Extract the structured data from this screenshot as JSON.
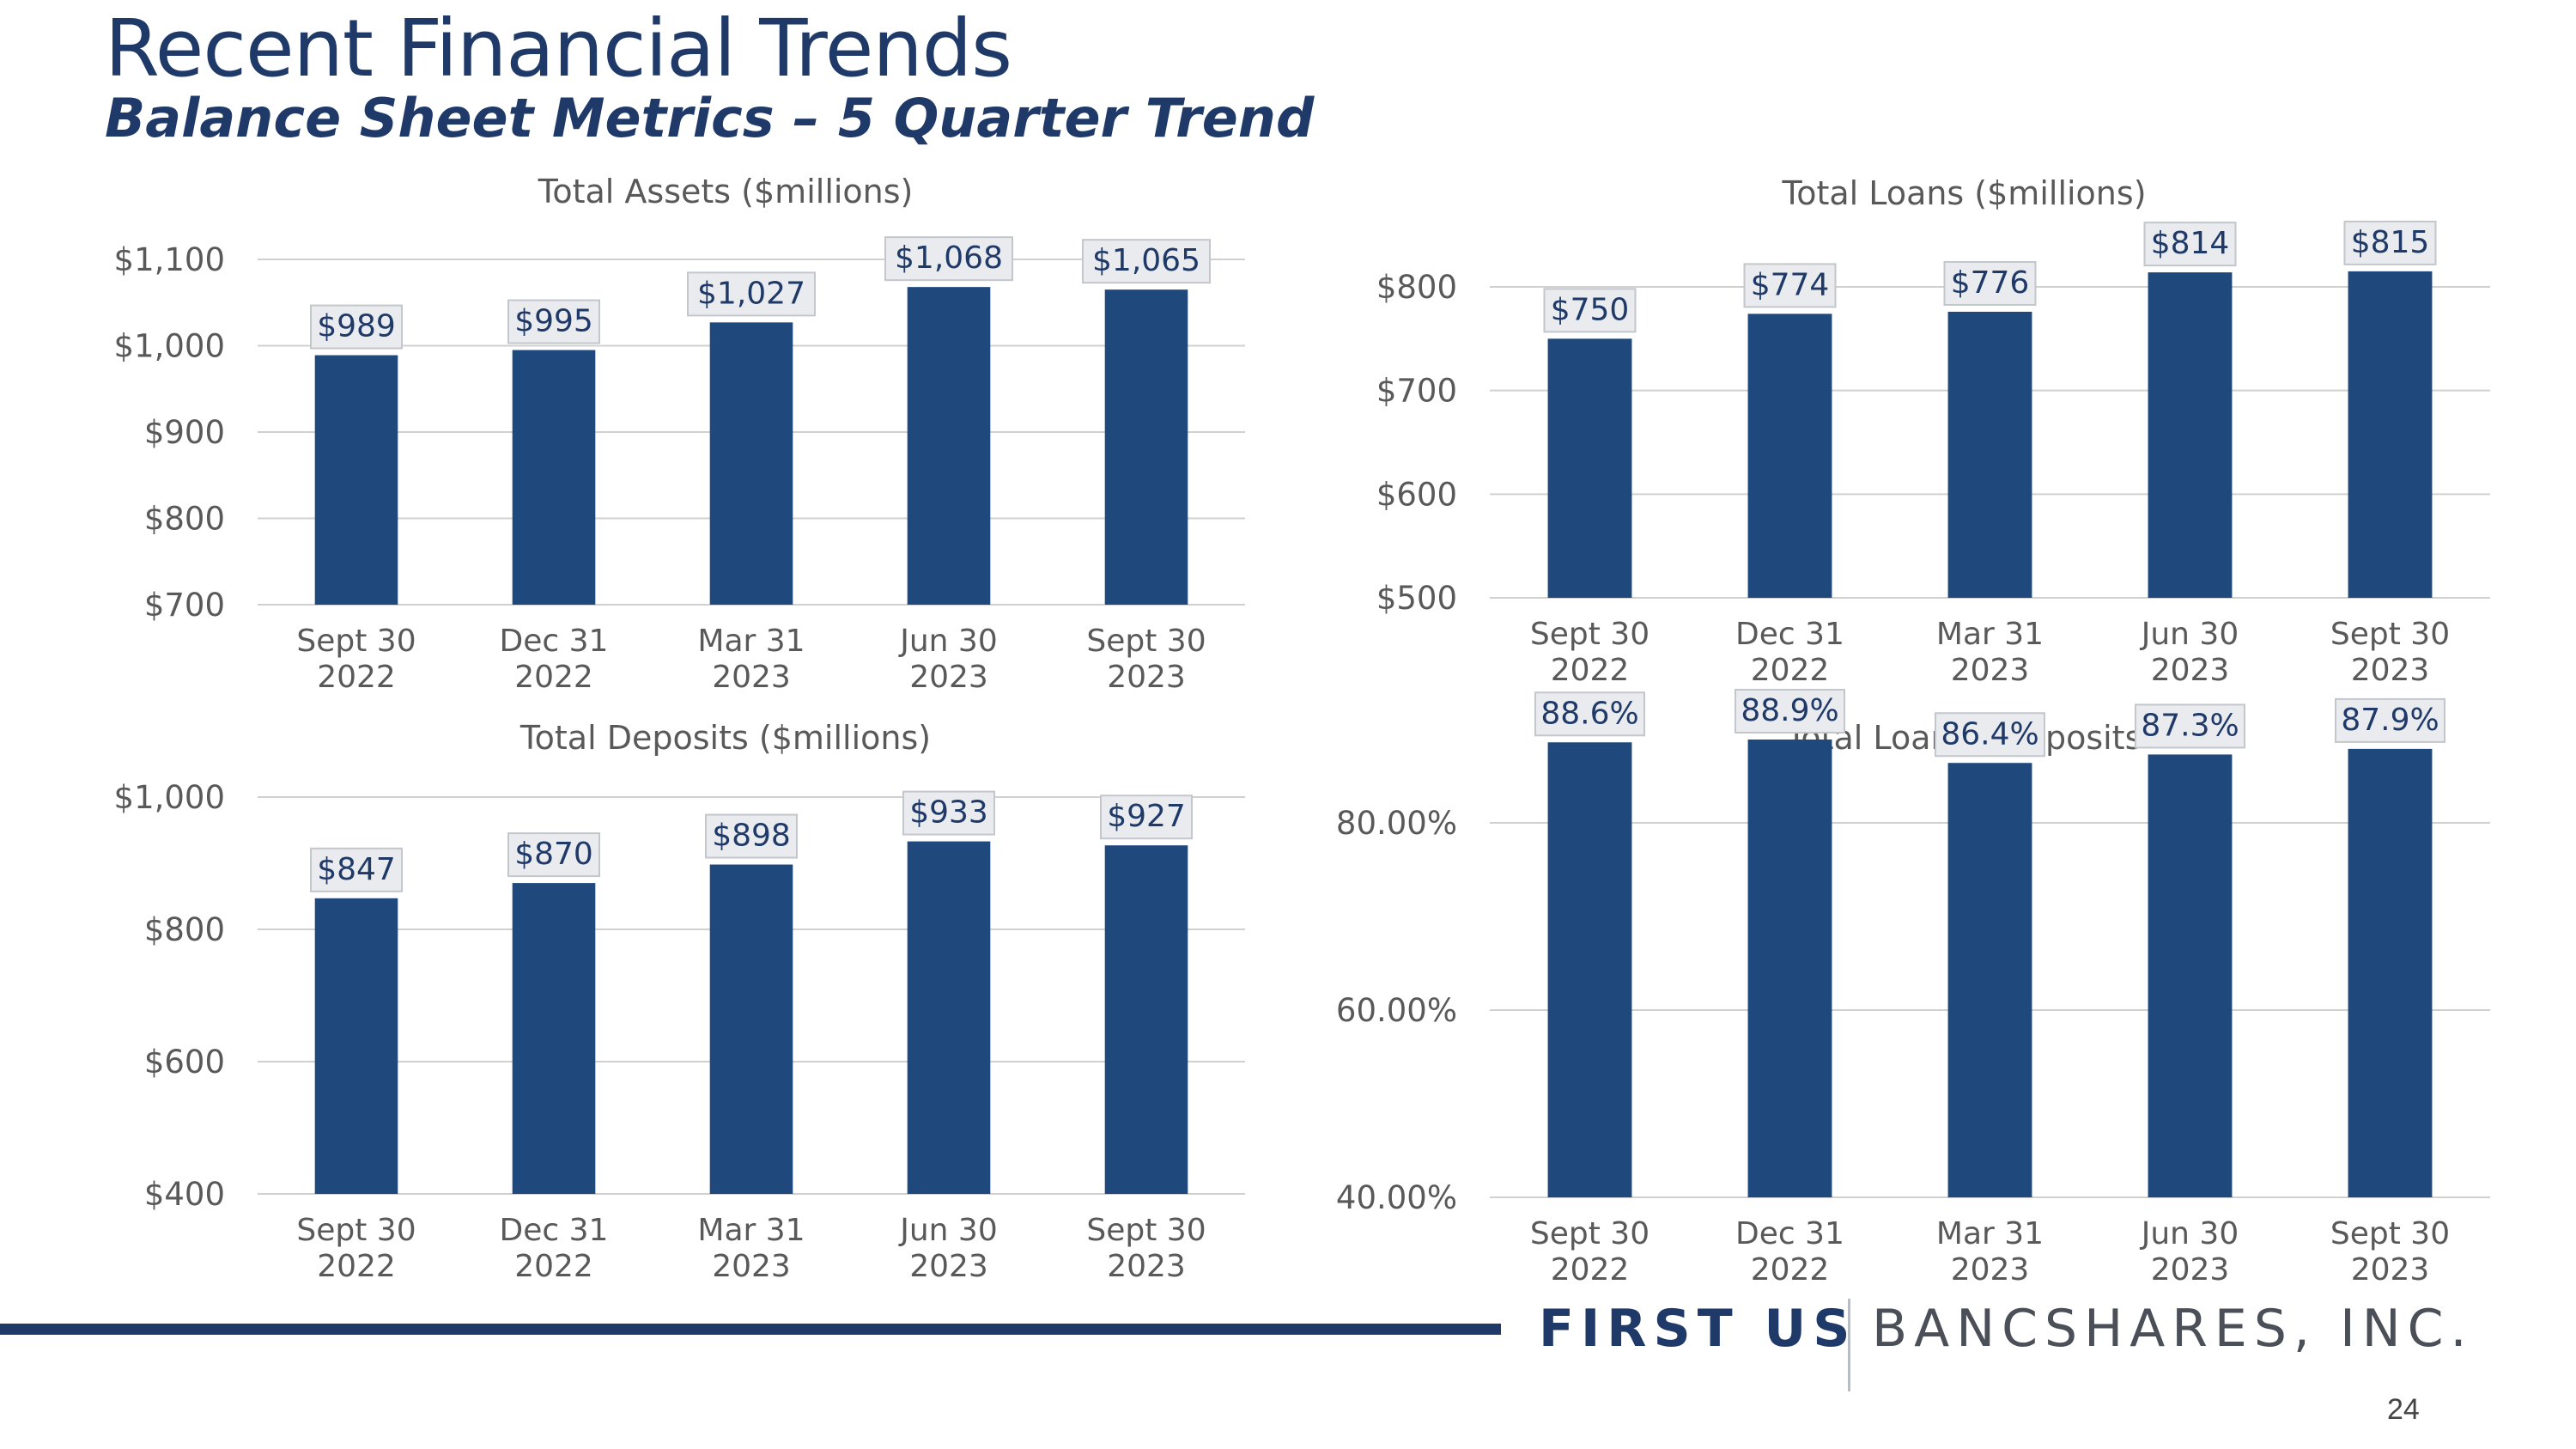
{
  "header": {
    "title": "Recent Financial Trends",
    "subtitle": "Balance Sheet Metrics – 5 Quarter Trend"
  },
  "colors": {
    "bar": "#1f497d",
    "grid": "#d0d0d0",
    "axis_text": "#595959",
    "label_fill": "#e9ebee",
    "label_border": "#c3c6cb",
    "label_text": "#1f3a68",
    "brand": "#1f3a68"
  },
  "chart_data": [
    {
      "type": "bar",
      "title": "Total Assets ($millions)",
      "categories": [
        [
          "Sept 30",
          "2022"
        ],
        [
          "Dec 31",
          "2022"
        ],
        [
          "Mar 31",
          "2023"
        ],
        [
          "Jun 30",
          "2023"
        ],
        [
          "Sept 30",
          "2023"
        ]
      ],
      "values": [
        989,
        995,
        1027,
        1068,
        1065
      ],
      "data_labels": [
        "$989",
        "$995",
        "$1,027",
        "$1,068",
        "$1,065"
      ],
      "ylim": [
        700,
        1100
      ],
      "yticks": [
        700,
        800,
        900,
        1000,
        1100
      ],
      "ytick_labels": [
        "$700",
        "$800",
        "$900",
        "$1,000",
        "$1,100"
      ],
      "grid": true
    },
    {
      "type": "bar",
      "title": "Total Loans ($millions)",
      "categories": [
        [
          "Sept 30",
          "2022"
        ],
        [
          "Dec 31",
          "2022"
        ],
        [
          "Mar 31",
          "2023"
        ],
        [
          "Jun 30",
          "2023"
        ],
        [
          "Sept 30",
          "2023"
        ]
      ],
      "values": [
        750,
        774,
        776,
        814,
        815
      ],
      "data_labels": [
        "$750",
        "$774",
        "$776",
        "$814",
        "$815"
      ],
      "ylim": [
        500,
        800
      ],
      "yticks": [
        500,
        600,
        700,
        800
      ],
      "ytick_labels": [
        "$500",
        "$600",
        "$700",
        "$800"
      ],
      "grid": true
    },
    {
      "type": "bar",
      "title": "Total Deposits ($millions)",
      "categories": [
        [
          "Sept 30",
          "2022"
        ],
        [
          "Dec 31",
          "2022"
        ],
        [
          "Mar 31",
          "2023"
        ],
        [
          "Jun 30",
          "2023"
        ],
        [
          "Sept 30",
          "2023"
        ]
      ],
      "values": [
        847,
        870,
        898,
        933,
        927
      ],
      "data_labels": [
        "$847",
        "$870",
        "$898",
        "$933",
        "$927"
      ],
      "ylim": [
        400,
        1000
      ],
      "yticks": [
        400,
        600,
        800,
        1000
      ],
      "ytick_labels": [
        "$400",
        "$600",
        "$800",
        "$1,000"
      ],
      "grid": true
    },
    {
      "type": "bar",
      "title": "Total Loans / Deposits",
      "categories": [
        [
          "Sept 30",
          "2022"
        ],
        [
          "Dec 31",
          "2022"
        ],
        [
          "Mar 31",
          "2023"
        ],
        [
          "Jun 30",
          "2023"
        ],
        [
          "Sept 30",
          "2023"
        ]
      ],
      "values": [
        88.6,
        88.9,
        86.4,
        87.3,
        87.9
      ],
      "data_labels": [
        "88.6%",
        "88.9%",
        "86.4%",
        "87.3%",
        "87.9%"
      ],
      "ylim": [
        40,
        80
      ],
      "yticks": [
        40,
        60,
        80
      ],
      "ytick_labels": [
        "40.00%",
        "60.00%",
        "80.00%"
      ],
      "grid": true
    }
  ],
  "footer": {
    "brand_bold": "FIRST US",
    "brand_light": "BANCSHARES, INC.",
    "page_number": "24"
  }
}
